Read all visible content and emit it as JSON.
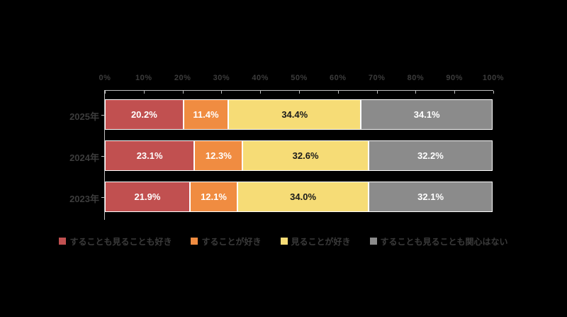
{
  "chart_data": {
    "type": "bar",
    "orientation": "horizontal-stacked",
    "title": "",
    "categories": [
      "2025年",
      "2024年",
      "2023年"
    ],
    "series": [
      {
        "name": "することも見ることも好き",
        "color": "#c15050",
        "label_color": "#ffffff",
        "values": [
          20.2,
          23.1,
          21.9
        ]
      },
      {
        "name": "することが好き",
        "color": "#f08c41",
        "label_color": "#ffffff",
        "values": [
          11.4,
          12.3,
          12.1
        ]
      },
      {
        "name": "見ることが好き",
        "color": "#f6dc76",
        "label_color": "#1a1a1a",
        "values": [
          34.4,
          32.6,
          34.0
        ]
      },
      {
        "name": "することも見ることも関心はない",
        "color": "#8b8b8b",
        "label_color": "#ffffff",
        "values": [
          34.1,
          32.2,
          32.1
        ]
      }
    ],
    "data_labels": [
      [
        "20.2%",
        "11.4%",
        "34.4%",
        "34.1%"
      ],
      [
        "23.1%",
        "12.3%",
        "32.6%",
        "32.2%"
      ],
      [
        "21.9%",
        "12.1%",
        "34.0%",
        "32.1%"
      ]
    ],
    "x_axis": {
      "ticks": [
        "0%",
        "10%",
        "20%",
        "30%",
        "40%",
        "50%",
        "60%",
        "70%",
        "80%",
        "90%",
        "100%"
      ],
      "range": [
        0,
        100
      ]
    },
    "legend_position": "bottom",
    "style": {
      "background": "#000000",
      "axis_line_color": "#bfbfbf",
      "axis_text_color": "#3c3c3c",
      "segment_border_color": "#ffffff"
    }
  }
}
